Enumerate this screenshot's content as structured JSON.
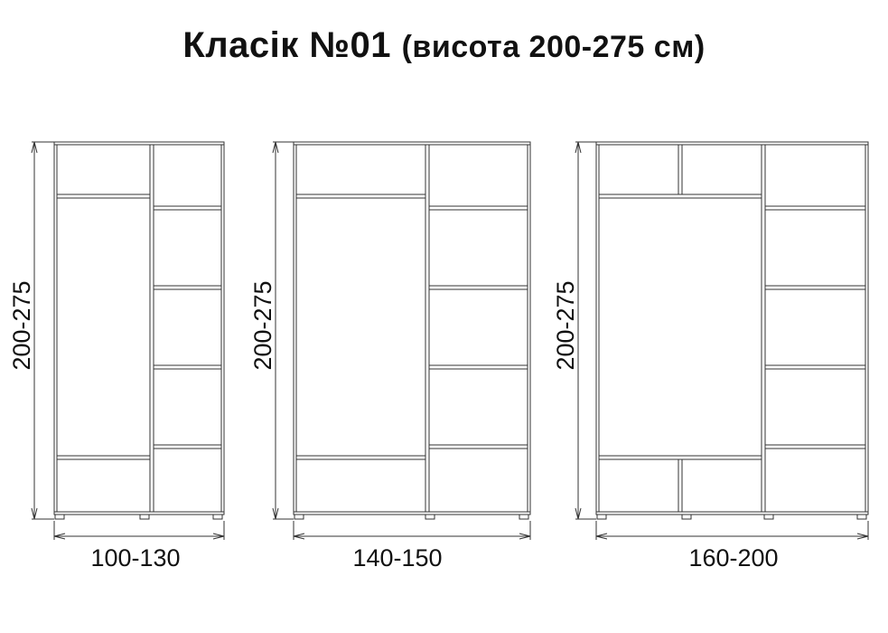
{
  "title": {
    "main": "Класік №01",
    "sub": "(висота 200-275 см)"
  },
  "wardrobes": [
    {
      "height_label": "200-275",
      "width_label": "100-130"
    },
    {
      "height_label": "200-275",
      "width_label": "140-150"
    },
    {
      "height_label": "200-275",
      "width_label": "160-200"
    }
  ],
  "colors": {
    "line": "#333333",
    "text": "#111111"
  }
}
